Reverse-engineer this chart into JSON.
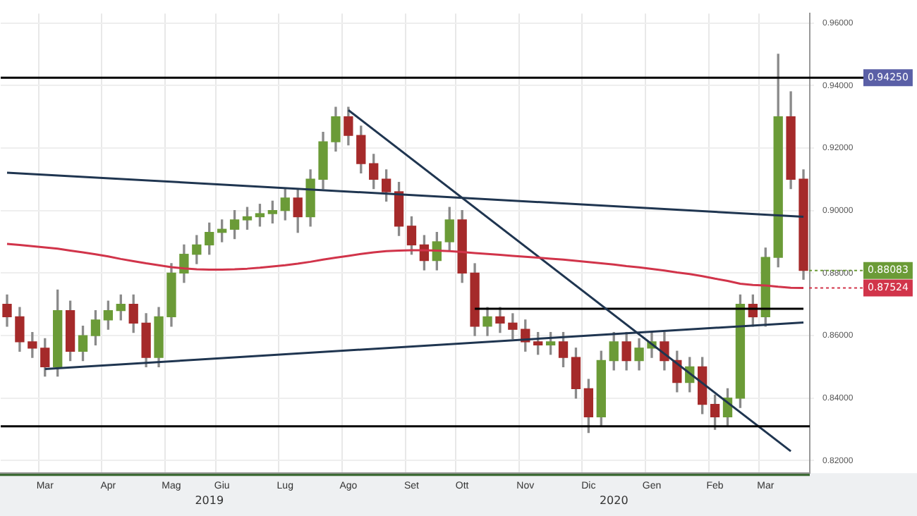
{
  "chart_data": {
    "type": "candlestick",
    "categories": [
      null,
      null,
      null,
      "Mar",
      null,
      null,
      null,
      null,
      "Apr",
      null,
      null,
      null,
      null,
      "Mag",
      null,
      null,
      null,
      "Giu",
      null,
      null,
      null,
      null,
      "Lug",
      null,
      null,
      null,
      null,
      "Ago",
      null,
      null,
      null,
      null,
      "Set",
      null,
      null,
      null,
      "Ott",
      null,
      null,
      null,
      null,
      "Nov",
      null,
      null,
      null,
      null,
      "Dic",
      null,
      null,
      null,
      null,
      "Gen",
      null,
      null,
      null,
      null,
      "Feb",
      null,
      null,
      null,
      "Mar",
      null,
      null,
      null
    ],
    "series": [
      {
        "color": "#6b9b37",
        "value_labels": [
          null,
          null,
          null,
          null,
          null,
          null,
          null,
          null,
          null,
          null,
          null,
          null,
          null,
          null,
          null,
          null,
          null,
          null,
          null,
          null,
          null,
          null,
          null,
          null,
          null,
          null,
          null,
          null,
          null,
          null,
          null,
          null,
          null,
          null,
          null,
          null,
          null,
          null,
          null,
          null,
          null,
          null,
          null,
          null,
          null,
          null,
          null,
          null,
          null,
          null,
          null,
          null,
          null,
          null,
          null,
          null,
          null,
          null,
          null,
          null,
          null,
          null,
          null,
          "0.88083"
        ],
        "colors": [
          "#a52a2a",
          "#a52a2a",
          "#a52a2a",
          "#a52a2a",
          "#6b9b37",
          "#a52a2a",
          "#6b9b37",
          "#6b9b37",
          "#6b9b37",
          "#6b9b37",
          "#a52a2a",
          "#a52a2a",
          "#6b9b37",
          "#6b9b37",
          "#6b9b37",
          "#6b9b37",
          "#6b9b37",
          "#6b9b37",
          "#6b9b37",
          "#6b9b37",
          "#6b9b37",
          "#6b9b37",
          "#6b9b37",
          "#a52a2a",
          "#6b9b37",
          "#6b9b37",
          "#6b9b37",
          "#a52a2a",
          "#a52a2a",
          "#a52a2a",
          "#a52a2a",
          "#a52a2a",
          "#a52a2a",
          "#a52a2a",
          "#6b9b37",
          "#6b9b37",
          "#a52a2a",
          "#a52a2a",
          "#6b9b37",
          "#a52a2a",
          "#a52a2a",
          "#a52a2a",
          "#a52a2a",
          "#6b9b37",
          "#a52a2a",
          "#a52a2a",
          "#a52a2a",
          "#6b9b37",
          "#6b9b37",
          "#a52a2a",
          "#6b9b37",
          "#6b9b37",
          "#a52a2a",
          "#a52a2a",
          "#6b9b37",
          "#a52a2a",
          "#a52a2a",
          "#6b9b37",
          "#6b9b37",
          "#a52a2a",
          "#6b9b37",
          "#6b9b37",
          "#a52a2a",
          "#a52a2a"
        ],
        "ohlc": [
          [
            0.87,
            0.873,
            0.863,
            0.866
          ],
          [
            0.866,
            0.869,
            0.855,
            0.858
          ],
          [
            0.858,
            0.861,
            0.853,
            0.856
          ],
          [
            0.856,
            0.859,
            0.847,
            0.85
          ],
          [
            0.85,
            0.8746,
            0.847,
            0.868
          ],
          [
            0.868,
            0.871,
            0.852,
            0.855
          ],
          [
            0.855,
            0.863,
            0.852,
            0.86
          ],
          [
            0.86,
            0.868,
            0.857,
            0.865
          ],
          [
            0.865,
            0.871,
            0.862,
            0.868
          ],
          [
            0.868,
            0.873,
            0.865,
            0.87
          ],
          [
            0.87,
            0.873,
            0.861,
            0.864
          ],
          [
            0.864,
            0.867,
            0.85,
            0.853
          ],
          [
            0.853,
            0.869,
            0.85,
            0.866
          ],
          [
            0.866,
            0.883,
            0.863,
            0.88
          ],
          [
            0.88,
            0.889,
            0.877,
            0.886
          ],
          [
            0.886,
            0.892,
            0.883,
            0.889
          ],
          [
            0.889,
            0.896,
            0.886,
            0.893
          ],
          [
            0.893,
            0.897,
            0.89,
            0.894
          ],
          [
            0.894,
            0.9,
            0.891,
            0.897
          ],
          [
            0.897,
            0.901,
            0.894,
            0.898
          ],
          [
            0.898,
            0.902,
            0.895,
            0.899
          ],
          [
            0.899,
            0.903,
            0.896,
            0.9
          ],
          [
            0.9,
            0.907,
            0.897,
            0.904
          ],
          [
            0.904,
            0.907,
            0.893,
            0.898
          ],
          [
            0.898,
            0.913,
            0.895,
            0.91
          ],
          [
            0.91,
            0.925,
            0.907,
            0.922
          ],
          [
            0.922,
            0.933,
            0.919,
            0.93
          ],
          [
            0.93,
            0.933,
            0.921,
            0.924
          ],
          [
            0.924,
            0.927,
            0.912,
            0.915
          ],
          [
            0.915,
            0.918,
            0.907,
            0.91
          ],
          [
            0.91,
            0.913,
            0.903,
            0.906
          ],
          [
            0.906,
            0.909,
            0.892,
            0.895
          ],
          [
            0.895,
            0.898,
            0.886,
            0.889
          ],
          [
            0.889,
            0.892,
            0.881,
            0.884
          ],
          [
            0.884,
            0.893,
            0.881,
            0.89
          ],
          [
            0.89,
            0.901,
            0.887,
            0.897
          ],
          [
            0.897,
            0.9,
            0.877,
            0.88
          ],
          [
            0.88,
            0.883,
            0.86,
            0.863
          ],
          [
            0.863,
            0.869,
            0.86,
            0.866
          ],
          [
            0.866,
            0.869,
            0.861,
            0.864
          ],
          [
            0.864,
            0.867,
            0.859,
            0.862
          ],
          [
            0.862,
            0.865,
            0.855,
            0.858
          ],
          [
            0.858,
            0.861,
            0.854,
            0.857
          ],
          [
            0.857,
            0.861,
            0.854,
            0.858
          ],
          [
            0.858,
            0.861,
            0.85,
            0.853
          ],
          [
            0.853,
            0.856,
            0.84,
            0.843
          ],
          [
            0.843,
            0.846,
            0.829,
            0.834
          ],
          [
            0.834,
            0.855,
            0.831,
            0.852
          ],
          [
            0.852,
            0.861,
            0.849,
            0.858
          ],
          [
            0.858,
            0.861,
            0.849,
            0.852
          ],
          [
            0.852,
            0.859,
            0.849,
            0.856
          ],
          [
            0.856,
            0.861,
            0.853,
            0.858
          ],
          [
            0.858,
            0.861,
            0.849,
            0.852
          ],
          [
            0.852,
            0.855,
            0.842,
            0.845
          ],
          [
            0.845,
            0.853,
            0.842,
            0.85
          ],
          [
            0.85,
            0.853,
            0.835,
            0.838
          ],
          [
            0.838,
            0.841,
            0.83,
            0.834
          ],
          [
            0.834,
            0.843,
            0.831,
            0.84
          ],
          [
            0.84,
            0.873,
            0.837,
            0.87
          ],
          [
            0.87,
            0.873,
            0.863,
            0.866
          ],
          [
            0.866,
            0.888,
            0.863,
            0.885
          ],
          [
            0.885,
            0.95,
            0.882,
            0.93
          ],
          [
            0.93,
            0.938,
            0.907,
            0.91
          ],
          [
            0.91,
            0.913,
            0.878,
            0.88083
          ]
        ]
      },
      {
        "type": "line",
        "color": "#d1344a",
        "value_labels": [
          null,
          null,
          null,
          null,
          null,
          null,
          null,
          null,
          null,
          null,
          null,
          null,
          null,
          null,
          null,
          null,
          null,
          null,
          null,
          null,
          null,
          null,
          null,
          null,
          null,
          null,
          null,
          null,
          null,
          null,
          null,
          null,
          null,
          null,
          null,
          null,
          null,
          null,
          null,
          null,
          null,
          null,
          null,
          null,
          null,
          null,
          null,
          null,
          null,
          null,
          null,
          null,
          null,
          null,
          null,
          null,
          null,
          null,
          null,
          null,
          null,
          null,
          null,
          "0.87524"
        ],
        "values": [
          0.8893,
          0.889,
          0.8886,
          0.8882,
          0.8878,
          0.8872,
          0.8866,
          0.886,
          0.8853,
          0.8845,
          0.8838,
          0.8831,
          0.8825,
          0.8819,
          0.8815,
          0.8812,
          0.8811,
          0.8811,
          0.8812,
          0.8814,
          0.8817,
          0.8821,
          0.8825,
          0.883,
          0.8836,
          0.8843,
          0.8849,
          0.8855,
          0.8861,
          0.8866,
          0.887,
          0.8872,
          0.8873,
          0.8873,
          0.8872,
          0.887,
          0.8867,
          0.8864,
          0.8861,
          0.8858,
          0.8855,
          0.8852,
          0.8849,
          0.8846,
          0.8843,
          0.8839,
          0.8835,
          0.8831,
          0.8827,
          0.8822,
          0.8818,
          0.8813,
          0.8808,
          0.8802,
          0.8797,
          0.879,
          0.8782,
          0.8775,
          0.8766,
          0.8762,
          0.876,
          0.8756,
          0.8753,
          0.87524
        ]
      },
      {
        "type": "line",
        "color": "#1f3550",
        "values": [
          0.9121,
          null,
          null,
          null,
          null,
          null,
          null,
          null,
          null,
          null,
          null,
          null,
          null,
          null,
          null,
          null,
          null,
          null,
          null,
          null,
          null,
          null,
          null,
          null,
          null,
          null,
          null,
          null,
          null,
          null,
          null,
          null,
          null,
          null,
          null,
          null,
          null,
          null,
          null,
          null,
          null,
          null,
          null,
          null,
          null,
          null,
          null,
          null,
          null,
          null,
          null,
          null,
          null,
          null,
          null,
          null,
          null,
          null,
          null,
          null,
          null,
          null,
          null,
          0.898
        ]
      },
      {
        "type": "line",
        "color": "#1f3550",
        "values": [
          null,
          null,
          null,
          0.8493,
          null,
          null,
          null,
          null,
          null,
          null,
          null,
          null,
          null,
          null,
          null,
          null,
          null,
          null,
          null,
          null,
          null,
          null,
          null,
          null,
          null,
          null,
          null,
          null,
          null,
          null,
          null,
          null,
          null,
          null,
          null,
          null,
          null,
          null,
          null,
          null,
          null,
          null,
          null,
          null,
          null,
          null,
          null,
          null,
          null,
          null,
          null,
          null,
          null,
          null,
          null,
          null,
          null,
          null,
          null,
          null,
          null,
          null,
          null,
          0.8642
        ]
      },
      {
        "type": "line",
        "color": "#1f3550",
        "values": [
          null,
          null,
          null,
          null,
          null,
          null,
          null,
          null,
          null,
          null,
          null,
          null,
          null,
          null,
          null,
          null,
          null,
          null,
          null,
          null,
          null,
          null,
          null,
          null,
          null,
          null,
          null,
          0.9321,
          null,
          null,
          null,
          null,
          null,
          null,
          null,
          null,
          null,
          null,
          null,
          null,
          null,
          null,
          null,
          null,
          null,
          null,
          null,
          null,
          null,
          null,
          null,
          null,
          null,
          null,
          null,
          null,
          null,
          null,
          null,
          null,
          null,
          null,
          0.823,
          null
        ]
      },
      {
        "type": "line",
        "color": "#000000",
        "values": [
          null,
          null,
          null,
          null,
          null,
          null,
          null,
          null,
          null,
          null,
          null,
          null,
          null,
          null,
          null,
          null,
          null,
          null,
          null,
          null,
          null,
          null,
          null,
          null,
          null,
          null,
          null,
          null,
          null,
          null,
          null,
          null,
          null,
          null,
          null,
          null,
          null,
          0.8686,
          null,
          null,
          null,
          null,
          null,
          null,
          null,
          null,
          null,
          null,
          null,
          null,
          null,
          null,
          null,
          null,
          null,
          null,
          null,
          null,
          null,
          null,
          null,
          null,
          null,
          0.8686
        ]
      }
    ],
    "ylim": [
      0.816,
      0.963
    ],
    "yticks": [
      {
        "value": 0.82,
        "label": "0.82000"
      },
      {
        "value": 0.84,
        "label": "0.84000"
      },
      {
        "value": 0.86,
        "label": "0.86000"
      },
      {
        "value": 0.88,
        "label": "0.88000"
      },
      {
        "value": 0.9,
        "label": "0.90000"
      },
      {
        "value": 0.92,
        "label": "0.92000"
      },
      {
        "value": 0.94,
        "label": "0.94000"
      },
      {
        "value": 0.96,
        "label": "0.96000"
      }
    ],
    "ref_lines": [
      {
        "axis": "y",
        "value": 0.9425,
        "label": "0.94250",
        "color": "#000000"
      },
      {
        "axis": "y",
        "value": 0.831,
        "color": "#000000"
      }
    ],
    "annotations": [
      "2019",
      "2020"
    ],
    "grid": true,
    "legend": false
  }
}
